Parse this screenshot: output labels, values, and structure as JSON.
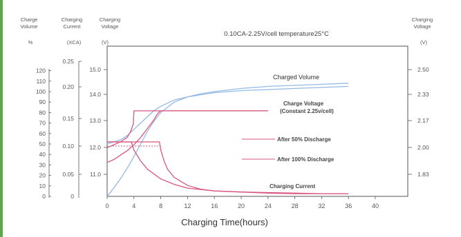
{
  "colors": {
    "accent_bar": "#5aa84a",
    "pink": "#d9557e",
    "blue": "#93b9e6",
    "axis": "#555555"
  },
  "chart_data": {
    "type": "line",
    "title": "0.10CA-2.25V/cell   temperature25°C",
    "xlabel": "Charging Time(hours)",
    "x_ticks": [
      "0",
      "4",
      "8",
      "12",
      "16",
      "20",
      "24",
      "28",
      "32",
      "36",
      "40"
    ],
    "xlim": [
      0,
      40
    ],
    "axes": {
      "volume": {
        "header": [
          "Charge",
          "Volume"
        ],
        "unit": "%",
        "ticks": [
          "0",
          "10",
          "20",
          "30",
          "40",
          "50",
          "60",
          "70",
          "80",
          "90",
          "100",
          "110",
          "120"
        ],
        "range": [
          0,
          120
        ]
      },
      "current": {
        "header": [
          "Charging",
          "Current"
        ],
        "unit": "(XCA)",
        "ticks": [
          "0.05",
          "0.10",
          "0.15",
          "0.20",
          "0.25"
        ],
        "range": [
          0,
          0.25
        ]
      },
      "voltage_left": {
        "header": [
          "Charging",
          "Voltage"
        ],
        "unit": "(V)",
        "ticks": [
          "11.0",
          "12.0",
          "13.0",
          "14.0",
          "15.0"
        ]
      },
      "voltage_right": {
        "header": [
          "Charging",
          "Voltage"
        ],
        "unit": "(V)",
        "ticks": [
          "1.83",
          "2.00",
          "2.17",
          "2.33",
          "2.50"
        ],
        "range": [
          1.67,
          2.5
        ]
      }
    },
    "annotations": {
      "charged_volume": "Charged Volume",
      "charge_voltage_1": "Charge Voltage",
      "charge_voltage_2": "(Constant 2.25v/cell)",
      "after50": "After 50% Discharge",
      "after100": "After 100% Discharge",
      "charging_current": "Charging Current"
    },
    "series": [
      {
        "axis": "volume",
        "values_x": [
          0,
          1,
          2,
          3,
          4,
          5,
          6,
          7,
          8,
          10,
          12,
          14,
          16,
          20,
          24,
          28,
          32,
          36
        ],
        "values_y": [
          0,
          8,
          17,
          27,
          38,
          50,
          62,
          72,
          80,
          90,
          95,
          98,
          100,
          103,
          105,
          106,
          107,
          108
        ]
      },
      {
        "axis": "volume",
        "values_x": [
          0,
          2,
          3,
          4,
          5,
          6,
          7,
          8,
          10,
          12,
          16,
          20,
          24,
          28,
          32,
          36
        ],
        "values_y": [
          50,
          54,
          58,
          64,
          70,
          76,
          82,
          86,
          92,
          95,
          99,
          101,
          102,
          103,
          104,
          105
        ]
      },
      {
        "axis": "voltage",
        "values_x": [
          0,
          1,
          2,
          3,
          3.5,
          3.9,
          4,
          6,
          8,
          10,
          12,
          14,
          16,
          20,
          24
        ],
        "values_y": [
          2.0,
          2.02,
          2.04,
          2.07,
          2.11,
          2.16,
          2.25,
          2.25,
          2.25,
          2.25,
          2.25,
          2.25,
          2.25,
          2.25,
          2.25
        ]
      },
      {
        "axis": "voltage",
        "values_x": [
          0,
          1,
          2,
          3,
          4,
          5,
          6,
          7,
          7.5,
          8,
          10,
          12,
          14,
          16,
          20,
          24
        ],
        "values_y": [
          1.9,
          1.92,
          1.95,
          1.98,
          2.02,
          2.07,
          2.13,
          2.19,
          2.23,
          2.25,
          2.25,
          2.25,
          2.25,
          2.25,
          2.25,
          2.25
        ]
      },
      {
        "axis": "current",
        "values_x": [
          0,
          2,
          3,
          3.6,
          4,
          5,
          6,
          8,
          10,
          12,
          16,
          20,
          24,
          28,
          32,
          36
        ],
        "values_y": [
          0.1,
          0.1,
          0.1,
          0.1,
          0.085,
          0.065,
          0.05,
          0.032,
          0.022,
          0.015,
          0.01,
          0.008,
          0.007,
          0.006,
          0.005,
          0.005
        ]
      },
      {
        "axis": "current",
        "values_x": [
          0,
          2,
          4,
          6,
          7.8,
          8,
          8.5,
          9,
          10,
          12,
          14,
          16,
          20,
          24,
          28,
          32,
          36
        ],
        "values_y": [
          0.1,
          0.1,
          0.1,
          0.1,
          0.1,
          0.085,
          0.065,
          0.05,
          0.035,
          0.02,
          0.013,
          0.01,
          0.008,
          0.006,
          0.005,
          0.005,
          0.005
        ]
      }
    ]
  }
}
